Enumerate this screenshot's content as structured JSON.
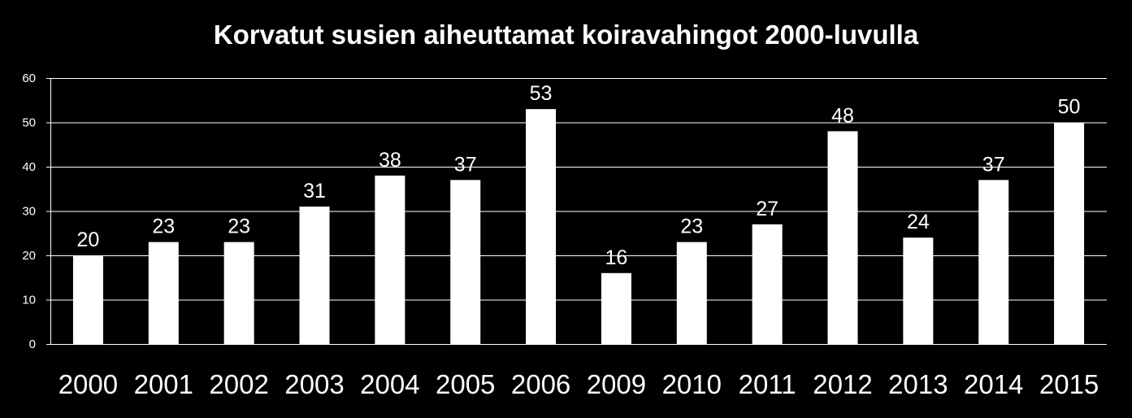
{
  "chart_data": {
    "type": "bar",
    "title": "Korvatut susien aiheuttamat koiravahingot 2000-luvulla",
    "xlabel": "",
    "ylabel": "",
    "categories": [
      "2000",
      "2001",
      "2002",
      "2003",
      "2004",
      "2005",
      "2006",
      "2009",
      "2010",
      "2011",
      "2012",
      "2013",
      "2014",
      "2015"
    ],
    "values": [
      20,
      23,
      23,
      31,
      38,
      37,
      53,
      16,
      23,
      27,
      48,
      24,
      37,
      50
    ],
    "ylim": [
      0,
      60
    ],
    "yticks": [
      0,
      10,
      20,
      30,
      40,
      50,
      60
    ],
    "grid": true,
    "legend": "none",
    "colors": {
      "background": "#000000",
      "bar": "#ffffff",
      "grid": "#ffffff",
      "text": "#ffffff"
    }
  }
}
